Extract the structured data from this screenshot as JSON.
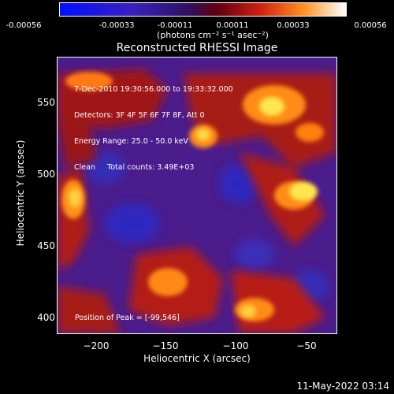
{
  "colorbar": {
    "ticks": [
      "-0.00056",
      "-0.00033",
      "-0.00011",
      "0.00011",
      "0.00033",
      "0.00056"
    ],
    "units": "(photons cm⁻² s⁻¹ asec⁻²)"
  },
  "plot": {
    "title": "Reconstructed RHESSI Image",
    "xlabel": "Heliocentric X (arcsec)",
    "ylabel": "Heliocentric Y (arcsec)",
    "xticks": [
      "−200",
      "−150",
      "−100",
      "−50"
    ],
    "yticks": [
      "550",
      "500",
      "450",
      "400"
    ],
    "info_lines": [
      "7-Dec-2010 19:30:56.000 to 19:33:32.000",
      "Detectors: 3F 4F 5F 6F 7F 8F, Att 0",
      "Energy Range: 25.0 - 50.0 keV",
      "Clean     Total counts: 3.49E+03"
    ],
    "peak_label": "Position of Peak = [-99,546]"
  },
  "datestamp": "11-May-2022 03:14",
  "colors": {
    "background": "#000000",
    "purple": "#4a1c8c",
    "blue": "#2030c8",
    "red": "#c81e14",
    "orange": "#ff8c14",
    "yellow": "#ffe650"
  }
}
